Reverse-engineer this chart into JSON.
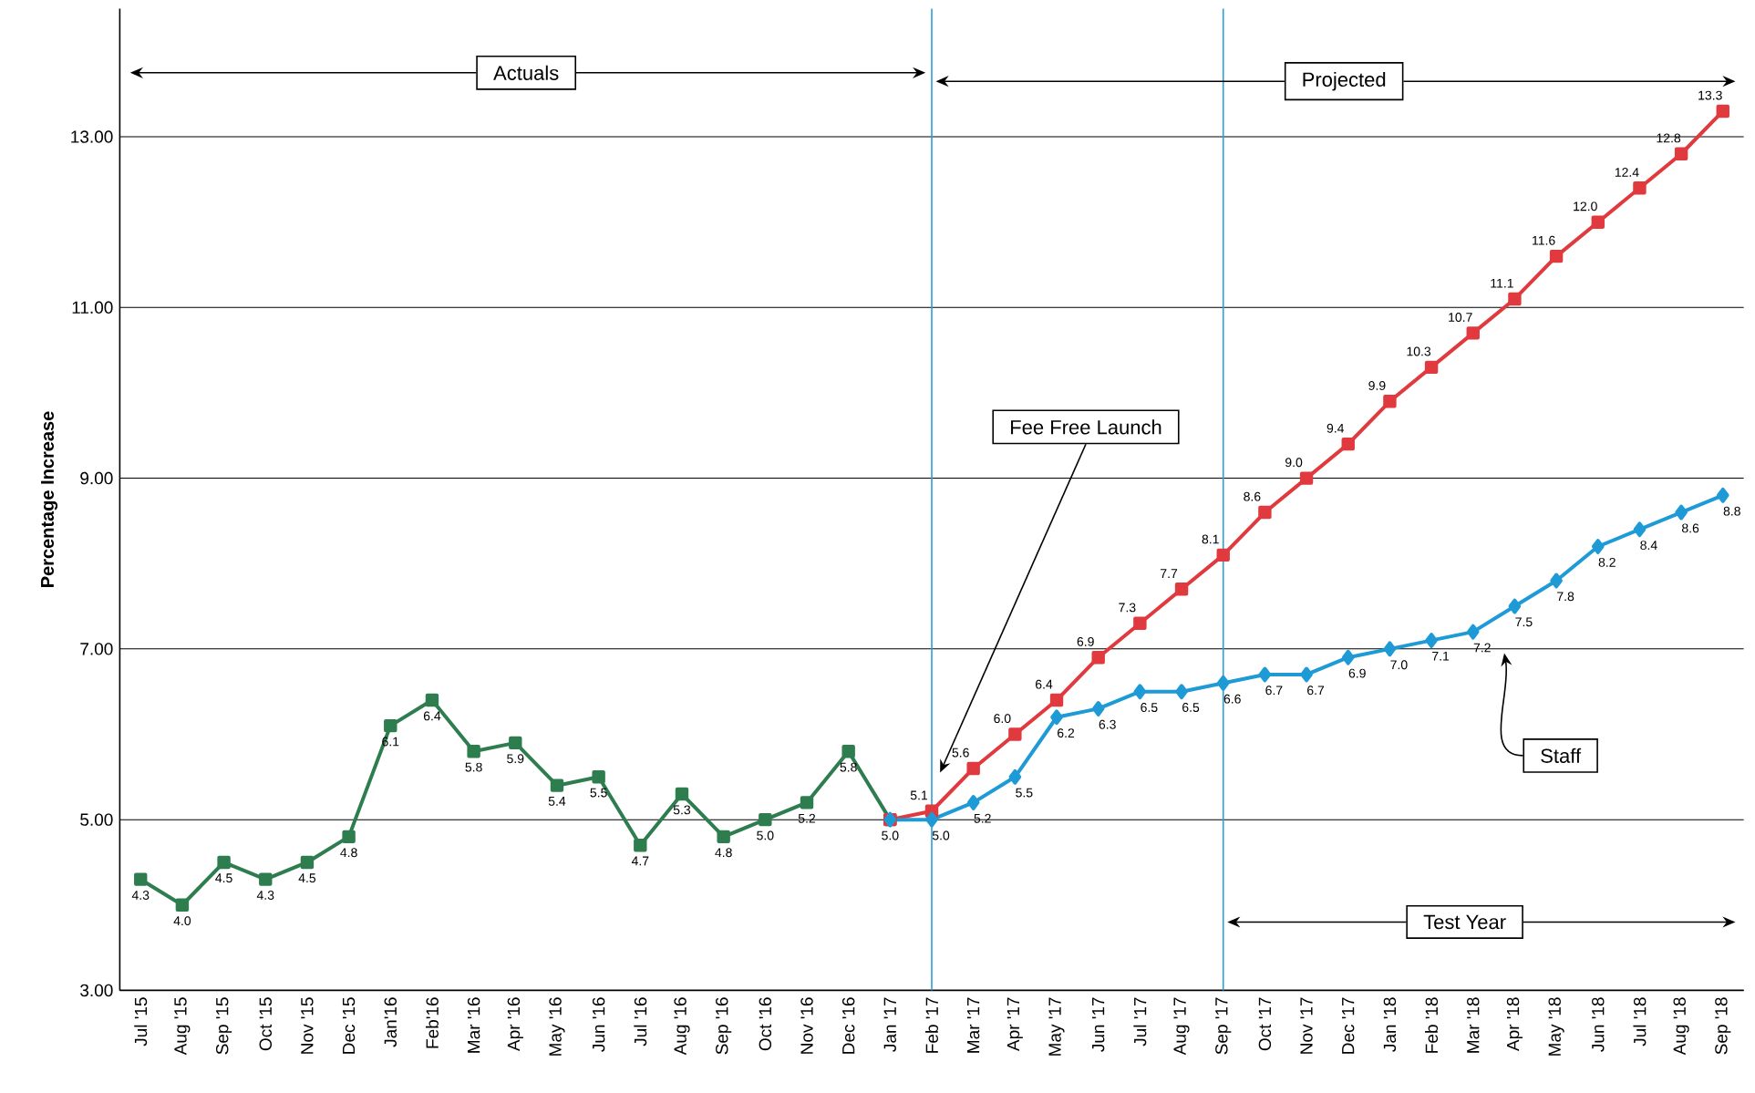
{
  "chart_data": {
    "type": "line",
    "ylabel": "Percentage Increase",
    "categories": [
      "Jul '15",
      "Aug '15",
      "Sep '15",
      "Oct '15",
      "Nov '15",
      "Dec '15",
      "Jan'16",
      "Feb'16",
      "Mar '16",
      "Apr '16",
      "May '16",
      "Jun '16",
      "Jul '16",
      "Aug '16",
      "Sep '16",
      "Oct '16",
      "Nov '16",
      "Dec '16",
      "Jan '17",
      "Feb '17",
      "Mar '17",
      "Apr '17",
      "May '17",
      "Jun '17",
      "Jul '17",
      "Aug '17",
      "Sep '17",
      "Oct '17",
      "Nov '17",
      "Dec '17",
      "Jan '18",
      "Feb '18",
      "Mar '18",
      "Apr '18",
      "May '18",
      "Jun '18",
      "Jul '18",
      "Aug '18",
      "Sep '18"
    ],
    "series": [
      {
        "color": "#2e7d4f",
        "marker": "square",
        "values": [
          4.3,
          4.0,
          4.5,
          4.3,
          4.5,
          4.8,
          6.1,
          6.4,
          5.8,
          5.9,
          5.4,
          5.5,
          4.7,
          5.3,
          4.8,
          5.0,
          5.2,
          5.8,
          5.0,
          null,
          null,
          null,
          null,
          null,
          null,
          null,
          null,
          null,
          null,
          null,
          null,
          null,
          null,
          null,
          null,
          null,
          null,
          null,
          null
        ],
        "value_labels": [
          "4.3",
          "4.0",
          "4.5",
          "4.3",
          "4.5",
          "4.8",
          "6.1",
          "6.4",
          "5.8",
          "5.9",
          "5.4",
          "5.5",
          "4.7",
          "5.3",
          "4.8",
          "5.0",
          "5.2",
          "5.8",
          "5.0",
          null,
          null,
          null,
          null,
          null,
          null,
          null,
          null,
          null,
          null,
          null,
          null,
          null,
          null,
          null,
          null,
          null,
          null,
          null,
          null
        ]
      },
      {
        "color": "#e0393e",
        "marker": "square",
        "values": [
          null,
          null,
          null,
          null,
          null,
          null,
          null,
          null,
          null,
          null,
          null,
          null,
          null,
          null,
          null,
          null,
          null,
          null,
          5.0,
          5.1,
          5.6,
          6.0,
          6.4,
          6.9,
          7.3,
          7.7,
          8.1,
          8.6,
          9.0,
          9.4,
          9.9,
          10.3,
          10.7,
          11.1,
          11.6,
          12.0,
          12.4,
          12.8,
          13.3
        ],
        "value_labels": [
          null,
          null,
          null,
          null,
          null,
          null,
          null,
          null,
          null,
          null,
          null,
          null,
          null,
          null,
          null,
          null,
          null,
          null,
          null,
          "5.1",
          "5.6",
          "6.0",
          "6.4",
          "6.9",
          "7.3",
          "7.7",
          "8.1",
          "8.6",
          "9.0",
          "9.4",
          "9.9",
          "10.3",
          "10.7",
          "11.1",
          "11.6",
          "12.0",
          "12.4",
          "12.8",
          "13.3"
        ]
      },
      {
        "color": "#1e9ad6",
        "marker": "diamond",
        "values": [
          null,
          null,
          null,
          null,
          null,
          null,
          null,
          null,
          null,
          null,
          null,
          null,
          null,
          null,
          null,
          null,
          null,
          null,
          5.0,
          5.0,
          5.2,
          5.5,
          6.2,
          6.3,
          6.5,
          6.5,
          6.6,
          6.7,
          6.7,
          6.9,
          7.0,
          7.1,
          7.2,
          7.5,
          7.8,
          8.2,
          8.4,
          8.6,
          8.8
        ],
        "value_labels": [
          null,
          null,
          null,
          null,
          null,
          null,
          null,
          null,
          null,
          null,
          null,
          null,
          null,
          null,
          null,
          null,
          null,
          null,
          null,
          "5.0",
          "5.2",
          "5.5",
          "6.2",
          "6.3",
          "6.5",
          "6.5",
          "6.6",
          "6.7",
          "6.7",
          "6.9",
          "7.0",
          "7.1",
          "7.2",
          "7.5",
          "7.8",
          "8.2",
          "8.4",
          "8.6",
          "8.8"
        ]
      }
    ],
    "ylim": [
      3,
      14.5
    ],
    "yticks": [
      {
        "value": 3,
        "label": "3.00"
      },
      {
        "value": 5,
        "label": "5.00"
      },
      {
        "value": 7,
        "label": "7.00"
      },
      {
        "value": 9,
        "label": "9.00"
      },
      {
        "value": 11,
        "label": "11.00"
      },
      {
        "value": 13,
        "label": "13.00"
      }
    ],
    "grid": "y",
    "ref_lines": [
      {
        "axis": "x",
        "value": "Feb '17",
        "color": "#2a9fd8"
      },
      {
        "axis": "x",
        "value": "Sep '17",
        "color": "#2a9fd8"
      }
    ],
    "annotations": [
      "Actuals",
      "Projected",
      "Fee Free Launch",
      "Staff",
      "Test Year"
    ]
  }
}
